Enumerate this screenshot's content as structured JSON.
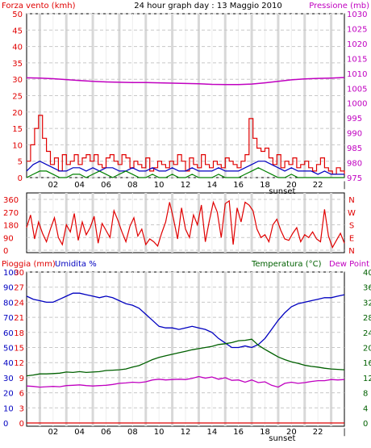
{
  "title": "24 hour graph day : 13 Maggio 2010",
  "colors": {
    "wind": "#e00000",
    "gust": "#e00000",
    "wind_avg": "#0000c0",
    "wind_low": "#008000",
    "pressure": "#c000c0",
    "rain": "#e00000",
    "humidity": "#0000c0",
    "temperature": "#006000",
    "dewpoint": "#c000c0",
    "grid": "#c8c8c8",
    "hour_band": "#d8d8d8"
  },
  "x_ticks": [
    "02",
    "04",
    "06",
    "08",
    "10",
    "12",
    "14",
    "16",
    "18",
    "20",
    "22",
    ""
  ],
  "sunset_label": "sunset",
  "chart_data": [
    {
      "type": "line",
      "name": "wind_pressure",
      "left_label": "Forza vento (kmh)",
      "right_label": "Pressione (mb)",
      "left_ticks": [
        "0",
        "5",
        "10",
        "15",
        "20",
        "25",
        "30",
        "35",
        "40",
        "45",
        "50"
      ],
      "right_ticks": [
        "975",
        "980",
        "985",
        "990",
        "995",
        "1000",
        "1005",
        "1010",
        "1015",
        "1020",
        "1025",
        "1030"
      ],
      "ylim_left": [
        0,
        50
      ],
      "ylim_right": [
        975,
        1030
      ],
      "xlim": [
        0,
        24
      ],
      "series": [
        {
          "key": "gust",
          "axis": "left",
          "x": [
            0,
            0.3,
            0.6,
            0.9,
            1.2,
            1.5,
            1.8,
            2.1,
            2.4,
            2.7,
            3.0,
            3.3,
            3.6,
            3.9,
            4.2,
            4.5,
            4.8,
            5.1,
            5.4,
            5.7,
            6.0,
            6.3,
            6.6,
            6.9,
            7.2,
            7.5,
            7.8,
            8.1,
            8.4,
            8.7,
            9.0,
            9.3,
            9.6,
            9.9,
            10.2,
            10.5,
            10.8,
            11.1,
            11.4,
            11.7,
            12.0,
            12.3,
            12.6,
            12.9,
            13.2,
            13.5,
            13.8,
            14.1,
            14.4,
            14.7,
            15.0,
            15.3,
            15.6,
            15.9,
            16.2,
            16.5,
            16.8,
            17.1,
            17.4,
            17.7,
            18.0,
            18.3,
            18.6,
            18.9,
            19.2,
            19.5,
            19.8,
            20.1,
            20.4,
            20.7,
            21.0,
            21.3,
            21.6,
            21.9,
            22.2,
            22.5,
            22.8,
            23.1,
            23.4,
            23.7,
            24.0
          ],
          "values": [
            5,
            10,
            15,
            19,
            12,
            8,
            4,
            6,
            2,
            7,
            4,
            5,
            7,
            4,
            6,
            7,
            5,
            7,
            4,
            3,
            6,
            7,
            5,
            4,
            7,
            6,
            3,
            5,
            4,
            3,
            6,
            2,
            3,
            5,
            4,
            3,
            5,
            4,
            7,
            5,
            2,
            6,
            4,
            3,
            7,
            4,
            3,
            5,
            4,
            3,
            6,
            5,
            4,
            3,
            5,
            7,
            18,
            12,
            9,
            8,
            9,
            6,
            4,
            7,
            3,
            5,
            4,
            6,
            3,
            4,
            5,
            3,
            2,
            4,
            6,
            3,
            2,
            1,
            3,
            2,
            1
          ]
        },
        {
          "key": "wind_avg",
          "axis": "left",
          "x": [
            0,
            0.5,
            1,
            1.5,
            2,
            2.5,
            3,
            3.5,
            4,
            4.5,
            5,
            5.5,
            6,
            6.5,
            7,
            7.5,
            8,
            8.5,
            9,
            9.5,
            10,
            10.5,
            11,
            11.5,
            12,
            12.5,
            13,
            13.5,
            14,
            14.5,
            15,
            15.5,
            16,
            16.5,
            17,
            17.5,
            18,
            18.5,
            19,
            19.5,
            20,
            20.5,
            21,
            21.5,
            22,
            22.5,
            23,
            23.5,
            24
          ],
          "values": [
            2,
            4,
            5,
            4,
            3,
            2,
            2,
            3,
            3,
            2,
            3,
            2,
            3,
            3,
            2,
            2,
            3,
            2,
            2,
            3,
            2,
            2,
            3,
            2,
            2,
            3,
            2,
            2,
            2,
            3,
            2,
            2,
            2,
            3,
            4,
            5,
            5,
            4,
            3,
            2,
            3,
            2,
            2,
            2,
            1,
            2,
            1,
            1,
            1
          ]
        },
        {
          "key": "wind_low",
          "axis": "left",
          "x": [
            0,
            0.5,
            1,
            1.5,
            2,
            2.5,
            3,
            3.5,
            4,
            4.5,
            5,
            5.5,
            6,
            6.5,
            7,
            7.5,
            8,
            8.5,
            9,
            9.5,
            10,
            10.5,
            11,
            11.5,
            12,
            12.5,
            13,
            13.5,
            14,
            14.5,
            15,
            15.5,
            16,
            16.5,
            17,
            17.5,
            18,
            18.5,
            19,
            19.5,
            20,
            20.5,
            21,
            21.5,
            22,
            22.5,
            23,
            23.5,
            24
          ],
          "values": [
            0,
            1,
            2,
            2,
            1,
            0,
            0,
            1,
            1,
            0,
            1,
            2,
            1,
            0,
            1,
            2,
            1,
            0,
            0,
            1,
            0,
            0,
            1,
            0,
            0,
            1,
            0,
            0,
            0,
            1,
            0,
            0,
            0,
            1,
            2,
            3,
            2,
            1,
            0,
            0,
            1,
            0,
            0,
            0,
            0,
            0,
            0,
            0,
            0
          ]
        },
        {
          "key": "pressure",
          "axis": "right",
          "x": [
            0,
            1,
            2,
            3,
            4,
            5,
            6,
            7,
            8,
            9,
            10,
            11,
            12,
            13,
            14,
            15,
            16,
            17,
            18,
            19,
            20,
            21,
            22,
            23,
            24
          ],
          "values": [
            1008.5,
            1008.4,
            1008.2,
            1007.9,
            1007.6,
            1007.3,
            1007.1,
            1007.0,
            1006.9,
            1006.9,
            1006.8,
            1006.7,
            1006.6,
            1006.5,
            1006.3,
            1006.2,
            1006.2,
            1006.4,
            1006.8,
            1007.3,
            1007.8,
            1008.1,
            1008.3,
            1008.4,
            1008.6
          ]
        }
      ]
    },
    {
      "type": "scatter",
      "name": "wind_direction",
      "left_ticks": [
        "0",
        "90",
        "180",
        "270",
        "360"
      ],
      "right_ticks": [
        "N",
        "E",
        "S",
        "W",
        "N"
      ],
      "ylim": [
        0,
        360
      ],
      "xlim": [
        0,
        24
      ],
      "series": [
        {
          "key": "wind_dir",
          "axis": "left",
          "x": [
            0,
            0.3,
            0.6,
            0.9,
            1.2,
            1.5,
            1.8,
            2.1,
            2.4,
            2.7,
            3.0,
            3.3,
            3.6,
            3.9,
            4.2,
            4.5,
            4.8,
            5.1,
            5.4,
            5.7,
            6.0,
            6.3,
            6.6,
            6.9,
            7.2,
            7.5,
            7.8,
            8.1,
            8.4,
            8.7,
            9.0,
            9.3,
            9.6,
            9.9,
            10.2,
            10.5,
            10.8,
            11.1,
            11.4,
            11.7,
            12.0,
            12.3,
            12.6,
            12.9,
            13.2,
            13.5,
            13.8,
            14.1,
            14.4,
            14.7,
            15.0,
            15.3,
            15.6,
            15.9,
            16.2,
            16.5,
            16.8,
            17.1,
            17.4,
            17.7,
            18.0,
            18.3,
            18.6,
            18.9,
            19.2,
            19.5,
            19.8,
            20.1,
            20.4,
            20.7,
            21.0,
            21.3,
            21.6,
            21.9,
            22.2,
            22.5,
            22.8,
            23.1,
            23.4,
            23.7,
            24.0
          ],
          "values": [
            160,
            250,
            80,
            200,
            120,
            60,
            150,
            230,
            90,
            40,
            180,
            130,
            260,
            70,
            200,
            110,
            160,
            240,
            50,
            190,
            140,
            90,
            280,
            210,
            130,
            60,
            170,
            230,
            100,
            150,
            40,
            80,
            60,
            30,
            120,
            200,
            340,
            220,
            80,
            300,
            150,
            90,
            250,
            180,
            320,
            60,
            210,
            340,
            270,
            90,
            330,
            350,
            40,
            300,
            200,
            340,
            320,
            280,
            150,
            90,
            110,
            60,
            180,
            220,
            140,
            80,
            70,
            120,
            160,
            60,
            110,
            90,
            130,
            80,
            60,
            290,
            100,
            20,
            70,
            120,
            50
          ]
        }
      ]
    },
    {
      "type": "line",
      "name": "rain_humidity_temp",
      "labels": {
        "rain": "Pioggia (mm)",
        "humidity": "Umidita %",
        "temperature": "Temperatura (°C)",
        "dewpoint": "Dew Point"
      },
      "rain_ticks": [
        "0",
        "3",
        "6",
        "9",
        "12",
        "15",
        "18",
        "21",
        "24",
        "27",
        "30"
      ],
      "humidity_ticks": [
        "0",
        "10",
        "20",
        "30",
        "40",
        "50",
        "60",
        "70",
        "80",
        "90",
        "100"
      ],
      "temp_ticks": [
        "0",
        "4",
        "8",
        "12",
        "16",
        "20",
        "24",
        "28",
        "32",
        "36",
        "40"
      ],
      "ylim_rain": [
        0,
        30
      ],
      "ylim_humidity": [
        0,
        100
      ],
      "ylim_temp": [
        0,
        40
      ],
      "xlim": [
        0,
        24
      ],
      "series": [
        {
          "key": "rain",
          "axis": "rain",
          "x": [
            0,
            24
          ],
          "values": [
            0,
            0
          ]
        },
        {
          "key": "humidity",
          "axis": "humidity",
          "x": [
            0,
            0.5,
            1,
            1.5,
            2,
            2.5,
            3,
            3.5,
            4,
            4.5,
            5,
            5.5,
            6,
            6.5,
            7,
            7.5,
            8,
            8.5,
            9,
            9.5,
            10,
            10.5,
            11,
            11.5,
            12,
            12.5,
            13,
            13.5,
            14,
            14.5,
            15,
            15.5,
            16,
            16.5,
            17,
            17.5,
            18,
            18.5,
            19,
            19.5,
            20,
            20.5,
            21,
            21.5,
            22,
            22.5,
            23,
            23.5,
            24
          ],
          "values": [
            84,
            82,
            81,
            80,
            80,
            82,
            84,
            86,
            86,
            85,
            84,
            83,
            84,
            83,
            81,
            79,
            78,
            76,
            72,
            68,
            64,
            63,
            63,
            62,
            63,
            64,
            63,
            62,
            60,
            56,
            53,
            50,
            50,
            51,
            50,
            52,
            56,
            62,
            68,
            73,
            77,
            79,
            80,
            81,
            82,
            83,
            83,
            84,
            85
          ]
        },
        {
          "key": "temperature",
          "axis": "temp",
          "x": [
            0,
            0.5,
            1,
            1.5,
            2,
            2.5,
            3,
            3.5,
            4,
            4.5,
            5,
            5.5,
            6,
            6.5,
            7,
            7.5,
            8,
            8.5,
            9,
            9.5,
            10,
            10.5,
            11,
            11.5,
            12,
            12.5,
            13,
            13.5,
            14,
            14.5,
            15,
            15.5,
            16,
            16.5,
            17,
            17.5,
            18,
            18.5,
            19,
            19.5,
            20,
            20.5,
            21,
            21.5,
            22,
            22.5,
            23,
            23.5,
            24
          ],
          "values": [
            12.5,
            12.7,
            13,
            13,
            13.1,
            13.2,
            13.5,
            13.4,
            13.6,
            13.4,
            13.5,
            13.6,
            13.9,
            14,
            14.1,
            14.3,
            14.8,
            15.2,
            16,
            16.8,
            17.4,
            17.8,
            18.2,
            18.6,
            19,
            19.4,
            19.7,
            20,
            20.3,
            20.8,
            21,
            21.3,
            21.8,
            21.9,
            22.2,
            20.6,
            19.5,
            18.5,
            17.5,
            16.8,
            16.2,
            15.8,
            15.3,
            15,
            14.8,
            14.5,
            14.3,
            14.2,
            14.1
          ]
        },
        {
          "key": "dewpoint",
          "axis": "temp",
          "x": [
            0,
            0.5,
            1,
            1.5,
            2,
            2.5,
            3,
            3.5,
            4,
            4.5,
            5,
            5.5,
            6,
            6.5,
            7,
            7.5,
            8,
            8.5,
            9,
            9.5,
            10,
            10.5,
            11,
            11.5,
            12,
            12.5,
            13,
            13.5,
            14,
            14.5,
            15,
            15.5,
            16,
            16.5,
            17,
            17.5,
            18,
            18.5,
            19,
            19.5,
            20,
            20.5,
            21,
            21.5,
            22,
            22.5,
            23,
            23.5,
            24
          ],
          "values": [
            9.8,
            9.7,
            9.5,
            9.6,
            9.7,
            9.6,
            9.9,
            10,
            10.1,
            9.9,
            9.8,
            9.9,
            10,
            10.2,
            10.5,
            10.6,
            10.8,
            10.7,
            10.9,
            11.4,
            11.6,
            11.4,
            11.5,
            11.6,
            11.5,
            11.8,
            12.3,
            11.9,
            12.2,
            11.6,
            12,
            11.3,
            11.4,
            10.8,
            11.4,
            10.7,
            10.9,
            10,
            9.5,
            10.5,
            10.8,
            10.5,
            10.7,
            11,
            11.2,
            11.2,
            11.5,
            11.4,
            11.5
          ]
        }
      ]
    }
  ]
}
